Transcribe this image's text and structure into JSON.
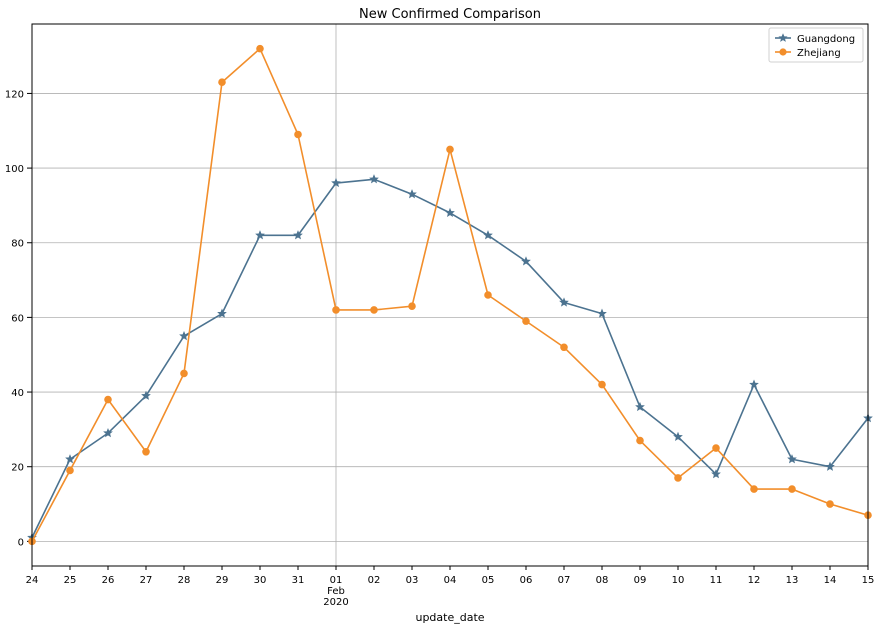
{
  "chart_data": {
    "type": "line",
    "title": "New Confirmed Comparison",
    "xlabel": "update_date",
    "ylabel": "",
    "x_ticks": [
      "24",
      "25",
      "26",
      "27",
      "28",
      "29",
      "30",
      "31",
      "01",
      "02",
      "03",
      "04",
      "05",
      "06",
      "07",
      "08",
      "09",
      "10",
      "11",
      "12",
      "13",
      "14",
      "15"
    ],
    "x_tick_secondary": {
      "month": "Feb",
      "year": "2020"
    },
    "x_dates": [
      "2020-01-24",
      "2020-01-25",
      "2020-01-26",
      "2020-01-27",
      "2020-01-28",
      "2020-01-29",
      "2020-01-30",
      "2020-01-31",
      "2020-02-01",
      "2020-02-02",
      "2020-02-03",
      "2020-02-04",
      "2020-02-05",
      "2020-02-06",
      "2020-02-07",
      "2020-02-08",
      "2020-02-09",
      "2020-02-10",
      "2020-02-11",
      "2020-02-12",
      "2020-02-13",
      "2020-02-14",
      "2020-02-15"
    ],
    "yticks": [
      "0",
      "20",
      "40",
      "60",
      "80",
      "100",
      "120"
    ],
    "ylim": [
      -6.6,
      138.6
    ],
    "grid": true,
    "legend_position": "top-right",
    "series": [
      {
        "name": "Guangdong",
        "color": "#4c7390",
        "marker": "star",
        "values": [
          1,
          22,
          29,
          39,
          55,
          61,
          82,
          82,
          96,
          97,
          93,
          88,
          82,
          75,
          64,
          61,
          36,
          28,
          18,
          42,
          22,
          20,
          33
        ]
      },
      {
        "name": "Zhejiang",
        "color": "#f28e2b",
        "marker": "circle",
        "values": [
          0,
          19,
          38,
          24,
          45,
          123,
          132,
          109,
          62,
          62,
          63,
          105,
          66,
          59,
          52,
          42,
          27,
          17,
          25,
          14,
          14,
          10,
          7
        ]
      }
    ]
  }
}
